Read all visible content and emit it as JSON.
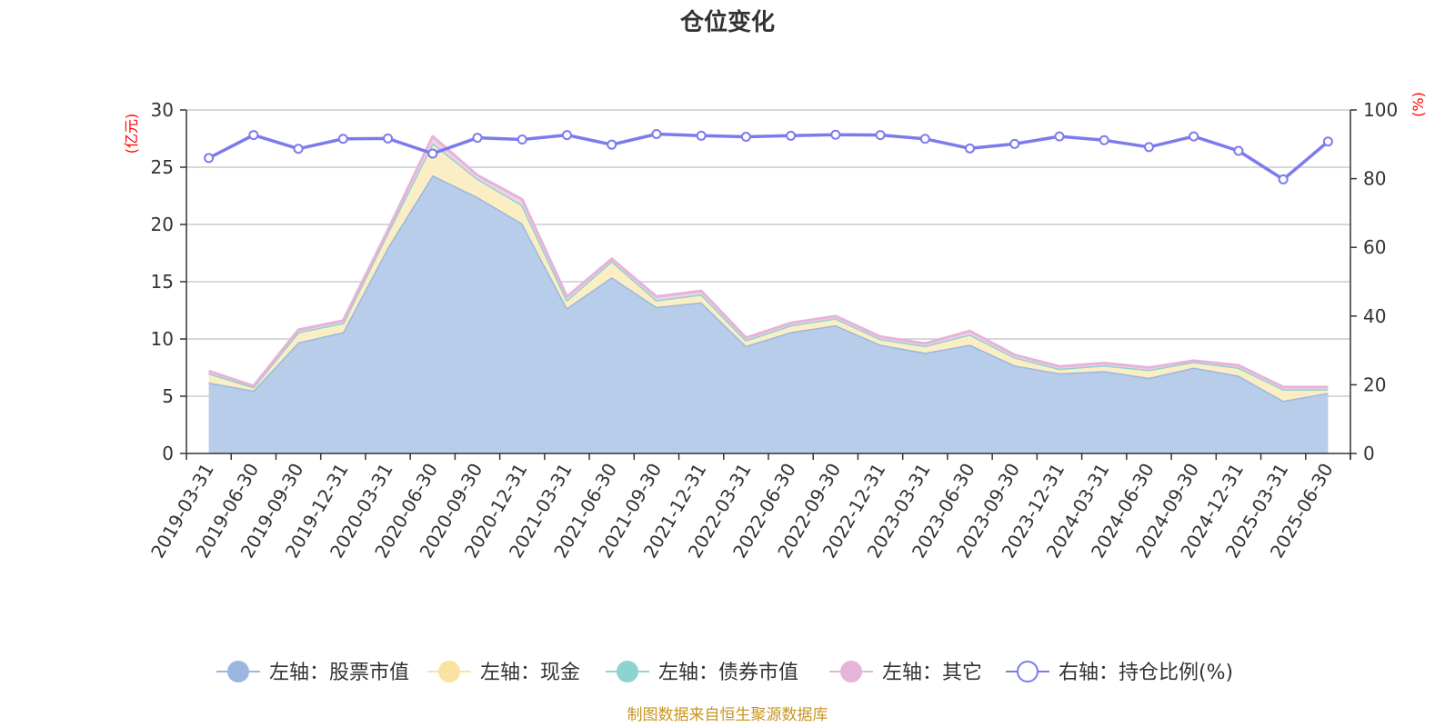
{
  "chart_data": {
    "type": "area",
    "title": "仓位变化",
    "left_unit": "(亿元)",
    "right_unit": "(%)",
    "source": "制图数据来自恒生聚源数据库",
    "categories": [
      "2019-03-31",
      "2019-06-30",
      "2019-09-30",
      "2019-12-31",
      "2020-03-31",
      "2020-06-30",
      "2020-09-30",
      "2020-12-31",
      "2021-03-31",
      "2021-06-30",
      "2021-09-30",
      "2021-12-31",
      "2022-03-31",
      "2022-06-30",
      "2022-09-30",
      "2022-12-31",
      "2023-03-31",
      "2023-06-30",
      "2023-09-30",
      "2023-12-31",
      "2024-03-31",
      "2024-06-30",
      "2024-09-30",
      "2024-12-31",
      "2025-03-31",
      "2025-06-30"
    ],
    "y_left": {
      "min": 0,
      "max": 30,
      "ticks": [
        0,
        5,
        10,
        15,
        20,
        25,
        30
      ]
    },
    "y_right": {
      "min": 0,
      "max": 100,
      "ticks": [
        0,
        20,
        40,
        60,
        80,
        100
      ]
    },
    "grid": true,
    "legend_position": "bottom",
    "series": [
      {
        "name": "左轴：股票市值",
        "axis": "left",
        "stack": true,
        "color": "#9bb7e0",
        "fill": "#b8cdea",
        "values": [
          6.2,
          5.5,
          9.7,
          10.6,
          18.0,
          24.3,
          22.4,
          20.1,
          12.7,
          15.4,
          12.8,
          13.2,
          9.4,
          10.6,
          11.2,
          9.5,
          8.8,
          9.5,
          7.7,
          7.0,
          7.2,
          6.6,
          7.5,
          6.8,
          4.6,
          5.3
        ]
      },
      {
        "name": "左轴：现金",
        "axis": "left",
        "stack": true,
        "color": "#f9e3a0",
        "fill": "#fbeec4",
        "values": [
          0.8,
          0.3,
          0.9,
          0.8,
          1.3,
          2.8,
          1.6,
          1.6,
          0.7,
          1.4,
          0.6,
          0.7,
          0.5,
          0.6,
          0.6,
          0.5,
          0.6,
          0.9,
          0.7,
          0.4,
          0.5,
          0.7,
          0.5,
          0.7,
          1.0,
          0.3
        ]
      },
      {
        "name": "左轴：债券市值",
        "axis": "left",
        "stack": true,
        "color": "#8fd3d0",
        "fill": "#bfe6e4",
        "values": [
          0,
          0,
          0,
          0,
          0,
          0,
          0,
          0,
          0,
          0,
          0,
          0,
          0,
          0,
          0,
          0,
          0,
          0,
          0,
          0,
          0,
          0,
          0,
          0,
          0,
          0
        ]
      },
      {
        "name": "左轴：其它",
        "axis": "left",
        "stack": true,
        "color": "#e6b3d9",
        "fill": "#f0d2e8",
        "values": [
          0.2,
          0.1,
          0.2,
          0.2,
          0.2,
          0.6,
          0.3,
          0.5,
          0.3,
          0.2,
          0.3,
          0.3,
          0.2,
          0.2,
          0.2,
          0.2,
          0.2,
          0.3,
          0.2,
          0.2,
          0.2,
          0.2,
          0.1,
          0.2,
          0.2,
          0.2
        ]
      },
      {
        "name": "右轴：持仓比例(%)",
        "axis": "right",
        "stack": false,
        "color": "#7b7bee",
        "values": [
          86.0,
          92.7,
          88.7,
          91.6,
          91.7,
          87.3,
          91.9,
          91.4,
          92.7,
          89.9,
          93.0,
          92.5,
          92.2,
          92.5,
          92.8,
          92.7,
          91.6,
          88.8,
          90.1,
          92.3,
          91.2,
          89.2,
          92.3,
          88.1,
          79.8,
          90.8
        ]
      }
    ]
  }
}
